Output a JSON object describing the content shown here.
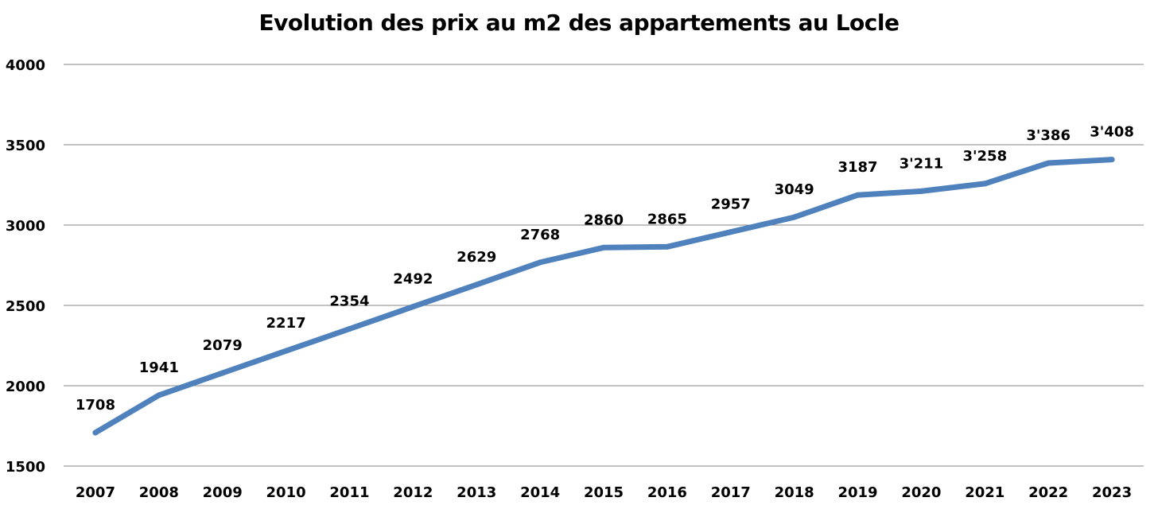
{
  "chart_data": {
    "type": "line",
    "title": "Evolution des prix au m2 des appartements au Locle",
    "xlabel": "",
    "ylabel": "",
    "categories": [
      "2007",
      "2008",
      "2009",
      "2010",
      "2011",
      "2012",
      "2013",
      "2014",
      "2015",
      "2016",
      "2017",
      "2018",
      "2019",
      "2020",
      "2021",
      "2022",
      "2023"
    ],
    "series": [
      {
        "values": [
          1708,
          1941,
          2079,
          2217,
          2354,
          2492,
          2629,
          2768,
          2860,
          2865,
          2957,
          3049,
          3187,
          3211,
          3258,
          3386,
          3408
        ],
        "labels": [
          "1708",
          "1941",
          "2079",
          "2217",
          "2354",
          "2492",
          "2629",
          "2768",
          "2860",
          "2865",
          "2957",
          "3049",
          "3187",
          "3'211",
          "3'258",
          "3'386",
          "3'408"
        ]
      }
    ],
    "yticks": [
      1500,
      2000,
      2500,
      3000,
      3500,
      4000
    ],
    "ylim": [
      1500,
      4000
    ],
    "grid": true,
    "legend": "none",
    "colors": {
      "line": "#4F81BD",
      "grid": "#868686",
      "text": "#000000"
    }
  }
}
